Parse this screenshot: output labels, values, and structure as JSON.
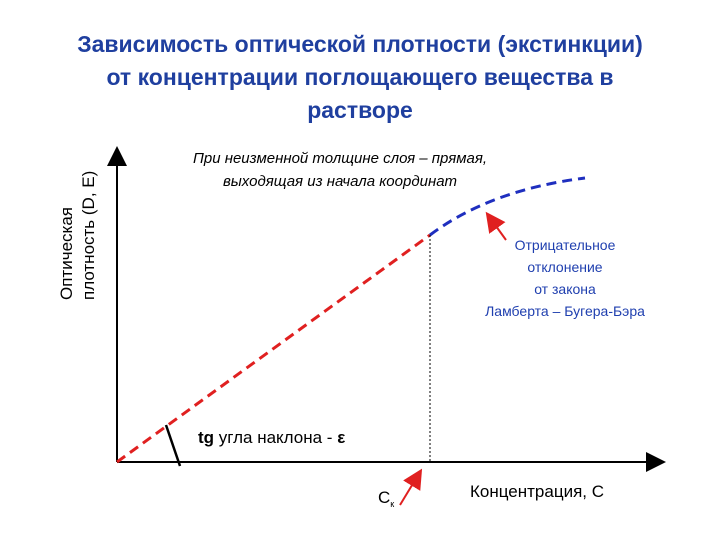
{
  "title": {
    "lines": [
      "Зависимость оптической плотности (экстинкции)",
      "от концентрации поглощающего вещества в",
      "растворе"
    ]
  },
  "y_axis_label": {
    "lines": [
      "Оптическая",
      "плотность (D, E)"
    ]
  },
  "x_axis_label": "Концентрация, С",
  "line_note": {
    "lines": [
      "При неизменной толщине слоя – прямая,",
      "выходящая из начала координат"
    ]
  },
  "deviation_note": {
    "lines": [
      "Отрицательное",
      "отклонение",
      "от закона",
      "Ламберта – Бугера-Бэра"
    ]
  },
  "slope_label": {
    "function": "tg",
    "text": " угла наклона - ",
    "symbol": "ε"
  },
  "concentration_mark": {
    "symbol": "С",
    "subscript": "к"
  }
}
